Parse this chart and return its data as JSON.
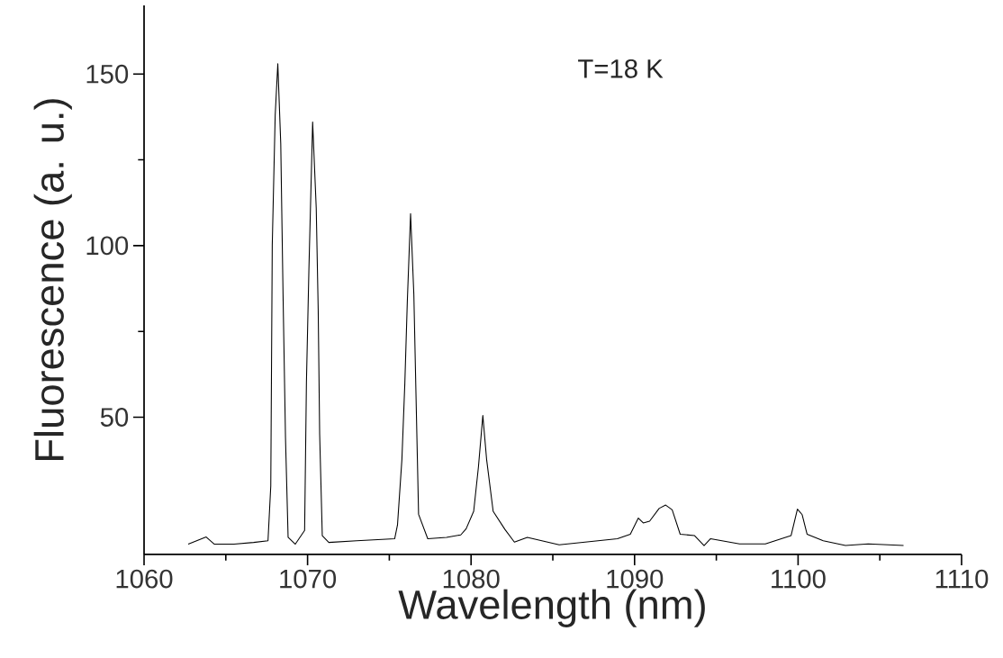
{
  "chart_data": {
    "type": "line",
    "xlabel": "Wavelength (nm)",
    "ylabel": "Fluorescence (a. u.)",
    "annotations": [
      "T=18 K"
    ],
    "xlim": [
      1060,
      1110
    ],
    "xticks": [
      1060,
      1070,
      1080,
      1090,
      1100,
      1110
    ],
    "ylim": [
      10,
      170
    ],
    "yticks": [
      50,
      100,
      150
    ],
    "grid": false,
    "marker": "none",
    "line_style": "solid",
    "series": [
      {
        "color": "#000000",
        "x": [
          1062.7,
          1063.8,
          1064.3,
          1065.5,
          1066.7,
          1067.58,
          1067.75,
          1067.84,
          1068.02,
          1068.18,
          1068.36,
          1068.5,
          1068.65,
          1068.81,
          1069.25,
          1069.82,
          1069.93,
          1070.08,
          1070.31,
          1070.53,
          1070.65,
          1070.74,
          1070.9,
          1071.3,
          1073.0,
          1075.33,
          1075.5,
          1075.77,
          1075.95,
          1076.1,
          1076.3,
          1076.5,
          1076.63,
          1076.79,
          1077.35,
          1078.5,
          1079.37,
          1079.7,
          1080.16,
          1080.45,
          1080.72,
          1080.95,
          1081.35,
          1082.07,
          1082.65,
          1083.44,
          1085.39,
          1088.95,
          1089.74,
          1090.23,
          1090.53,
          1090.92,
          1091.5,
          1091.9,
          1092.3,
          1092.79,
          1093.67,
          1094.25,
          1094.65,
          1096.42,
          1098.0,
          1099.57,
          1099.96,
          1100.25,
          1100.55,
          1101.54,
          1102.9,
          1104.29,
          1106.45
        ],
        "values": [
          13,
          15.1,
          13,
          13,
          13.5,
          14,
          30,
          100,
          138,
          153,
          129.7,
          85.8,
          44,
          15,
          13,
          17,
          60,
          92.7,
          136,
          111,
          81.5,
          45,
          15.5,
          13.5,
          14,
          14.6,
          18.6,
          37.7,
          60,
          83.6,
          109.3,
          85.8,
          56.9,
          21.7,
          14.6,
          15,
          15.7,
          17.5,
          22.6,
          35.5,
          50.5,
          37.7,
          22.6,
          17.3,
          13.6,
          15,
          12.8,
          14.6,
          15.9,
          20.6,
          19.2,
          19.7,
          23.4,
          24.4,
          23,
          15.9,
          15.5,
          12.6,
          14.6,
          13.1,
          13.1,
          15.5,
          23.2,
          21.6,
          15.9,
          14,
          12.6,
          13.1,
          12.6
        ]
      }
    ]
  }
}
